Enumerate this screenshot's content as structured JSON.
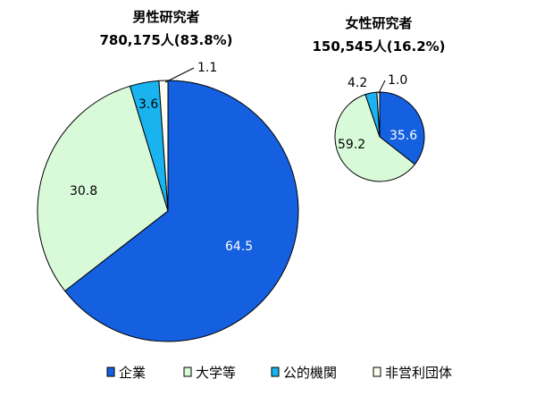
{
  "chart_data": {
    "type": "pie",
    "categories": [
      "企業",
      "大学等",
      "公的機関",
      "非営利団体"
    ],
    "colors": [
      "#1560e0",
      "#d9fad9",
      "#19b4f0",
      "#fdfdf0"
    ],
    "charts": [
      {
        "title": "男性研究者",
        "subtitle": "780,175人(83.8%)",
        "values": [
          64.5,
          30.8,
          3.6,
          1.1
        ],
        "labels": [
          "64.5",
          "30.8",
          "3.6",
          "1.1"
        ]
      },
      {
        "title": "女性研究者",
        "subtitle": "150,545人(16.2%)",
        "values": [
          35.6,
          59.2,
          4.2,
          1.0
        ],
        "labels": [
          "35.6",
          "59.2",
          "4.2",
          "1.0"
        ]
      }
    ],
    "legend": {
      "position": "bottom",
      "items": [
        "企業",
        "大学等",
        "公的機関",
        "非営利団体"
      ]
    }
  }
}
